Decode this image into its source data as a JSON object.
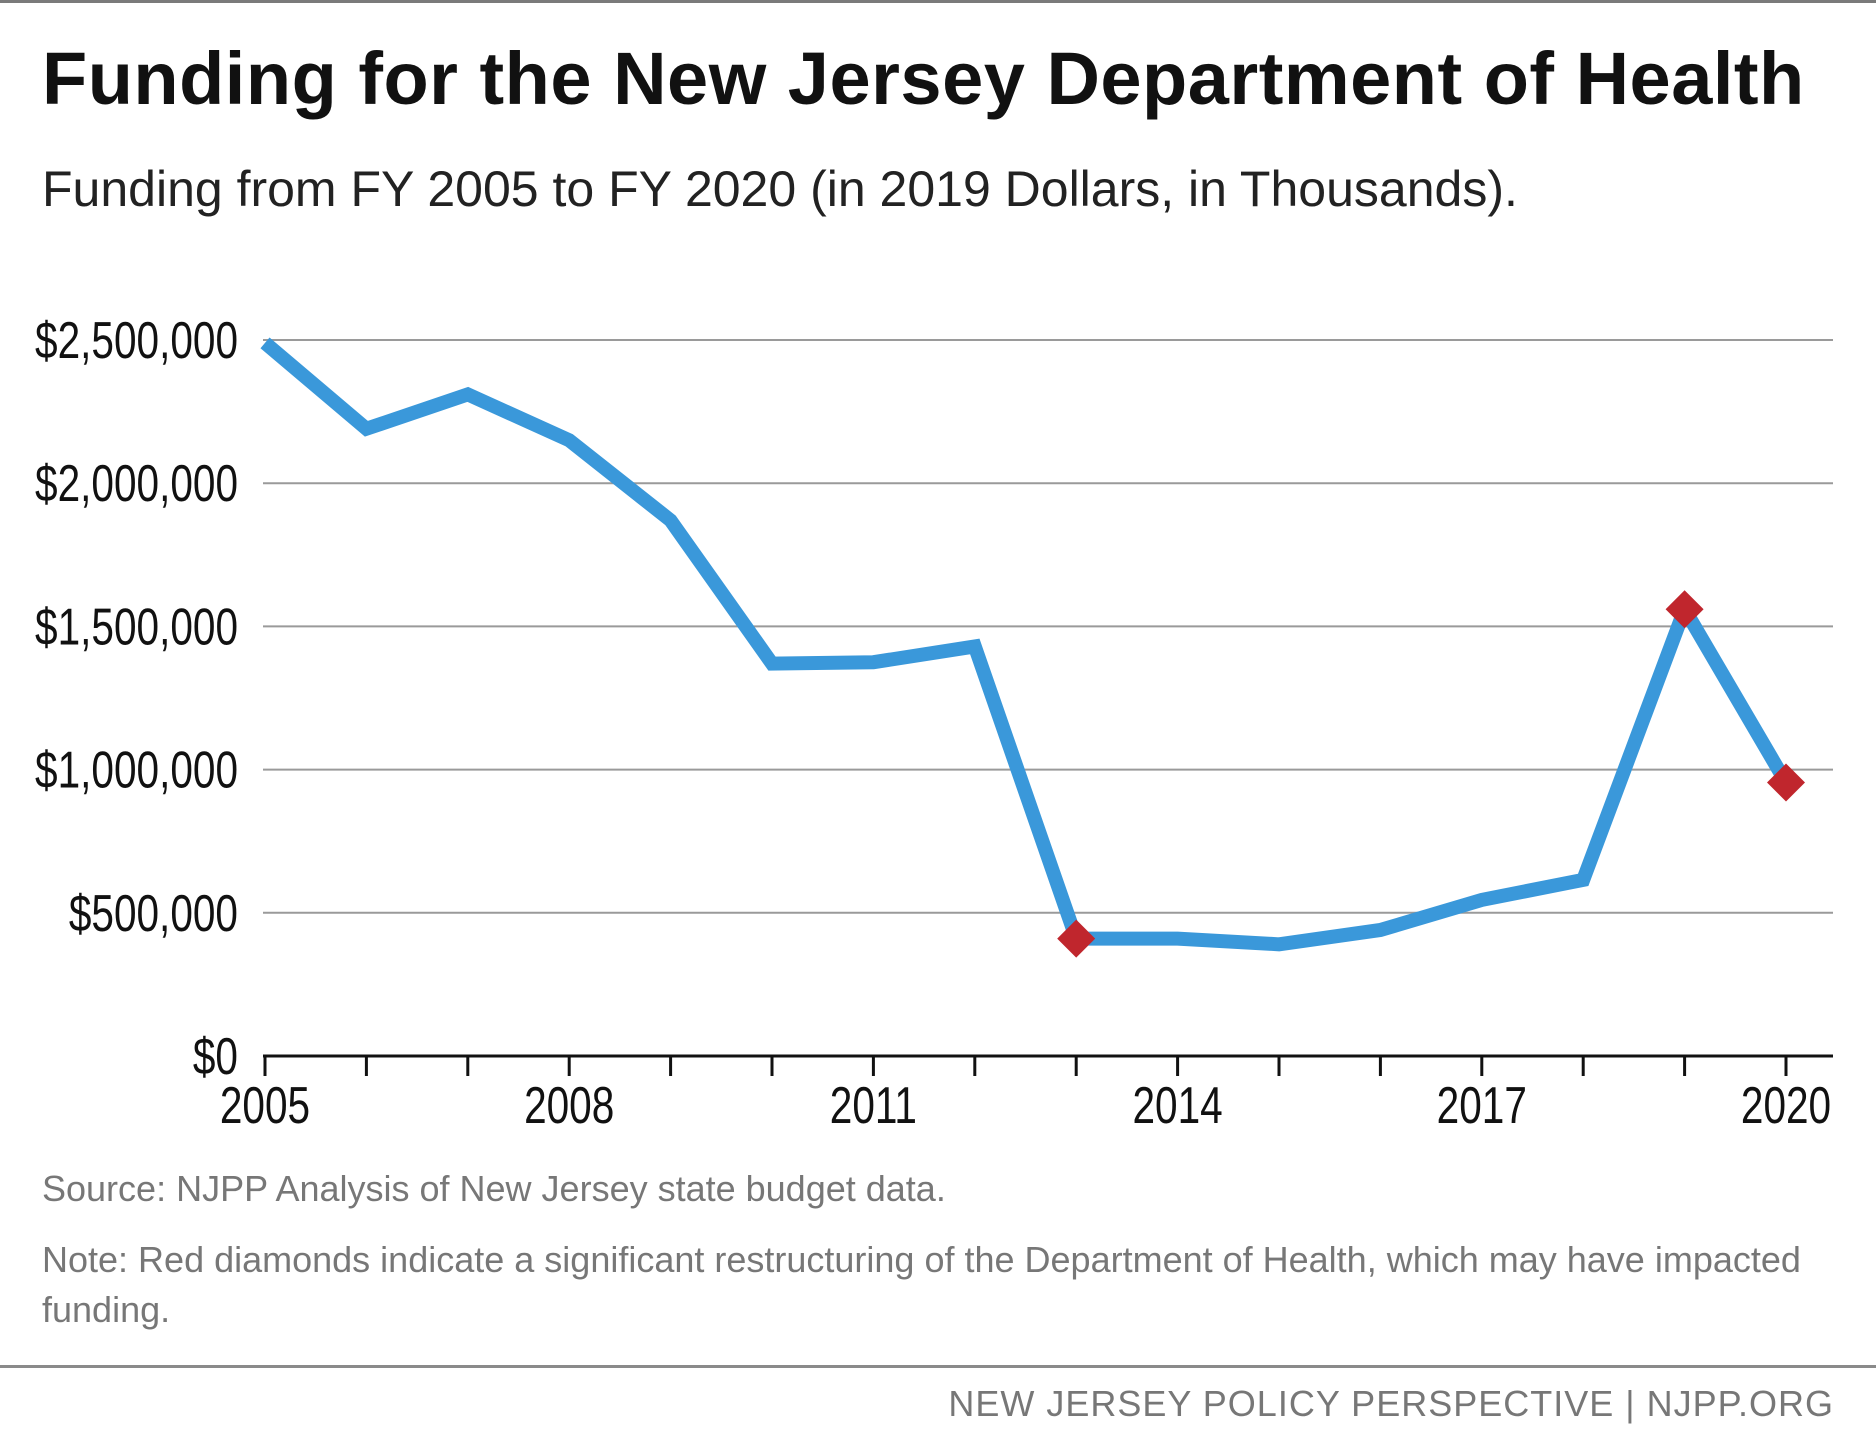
{
  "title": "Funding for the New Jersey Department of Health",
  "subtitle": "Funding from FY 2005 to FY 2020 (in 2019 Dollars, in Thousands).",
  "source": "Source: NJPP Analysis of New Jersey state budget data.",
  "note": "Note: Red diamonds indicate a significant restructuring of the Department of Health, which may have impacted funding.",
  "footer": "NEW JERSEY POLICY PERSPECTIVE | NJPP.ORG",
  "chart_data": {
    "type": "line",
    "title": "Funding for the New Jersey Department of Health",
    "xlabel": "",
    "ylabel": "",
    "x": [
      2005,
      2006,
      2007,
      2008,
      2009,
      2010,
      2011,
      2012,
      2013,
      2014,
      2015,
      2016,
      2017,
      2018,
      2019,
      2020
    ],
    "series": [
      {
        "values": [
          2490000,
          2190000,
          2310000,
          2150000,
          1870000,
          1370000,
          1375000,
          1430000,
          410000,
          410000,
          390000,
          440000,
          545000,
          615000,
          1560000,
          955000
        ],
        "color": "#3a98da"
      }
    ],
    "highlighted_x": [
      2013,
      2019,
      2020
    ],
    "marker_color": "#c0262d",
    "ylim": [
      0,
      2500000
    ],
    "yticks": [
      0,
      500000,
      1000000,
      1500000,
      2000000,
      2500000
    ],
    "ytick_labels": [
      "$0",
      "$500,000",
      "$1,000,000",
      "$1,500,000",
      "$2,000,000",
      "$2,500,000"
    ],
    "xticks_labeled": [
      2005,
      2008,
      2011,
      2014,
      2017,
      2020
    ],
    "grid": true,
    "legend": "none"
  }
}
